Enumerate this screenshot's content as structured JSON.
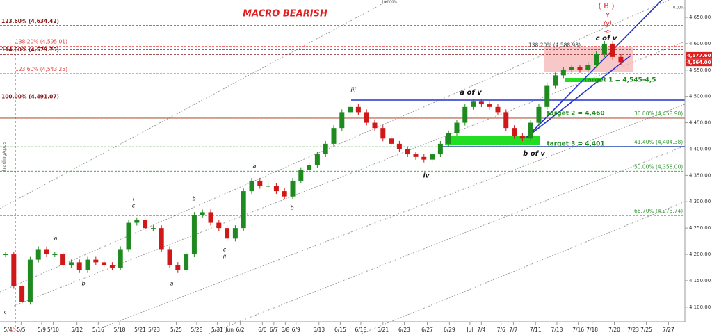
{
  "chart_data": {
    "type": "candlestick",
    "title": "MACRO BEARISH",
    "series": [
      {
        "name": "tradingApps",
        "up_color": "#1f8a1f",
        "down_color": "#d01818",
        "values": [
          4200,
          4140,
          4110,
          4190,
          4210,
          4200,
          4200,
          4180,
          4185,
          4170,
          4190,
          4185,
          4180,
          4175,
          4210,
          4260,
          4265,
          4250,
          4250,
          4210,
          4180,
          4170,
          4200,
          4275,
          4280,
          4260,
          4250,
          4230,
          4250,
          4320,
          4340,
          4330,
          4330,
          4320,
          4310,
          4340,
          4360,
          4370,
          4390,
          4410,
          4440,
          4470,
          4480,
          4470,
          4450,
          4440,
          4420,
          4410,
          4400,
          4390,
          4385,
          4380,
          4390,
          4410,
          4430,
          4450,
          4480,
          4490,
          4485,
          4480,
          4470,
          4440,
          4425,
          4420,
          4450,
          4480,
          4520,
          4540,
          4550,
          4555,
          4550,
          4560,
          4580,
          4600,
          4575,
          4565
        ]
      }
    ],
    "xlim": [
      -0.68,
      82.8
    ],
    "xticks": [
      {
        "value": 0.3,
        "label": "5/4"
      },
      {
        "value": 1.9,
        "label": "5/5"
      },
      {
        "value": 4.4,
        "label": "5/9"
      },
      {
        "value": 5.8,
        "label": "5/10"
      },
      {
        "value": 8.7,
        "label": "5/12"
      },
      {
        "value": 11.3,
        "label": "5/16"
      },
      {
        "value": 13.9,
        "label": "5/18"
      },
      {
        "value": 16.4,
        "label": "5/21"
      },
      {
        "value": 18.1,
        "label": "5/23"
      },
      {
        "value": 20.8,
        "label": "5/25"
      },
      {
        "value": 23.3,
        "label": "5/28"
      },
      {
        "value": 25.8,
        "label": "5/31"
      },
      {
        "value": 27.3,
        "label": "Jun"
      },
      {
        "value": 28.6,
        "label": "6/2"
      },
      {
        "value": 31.3,
        "label": "6/6"
      },
      {
        "value": 32.7,
        "label": "6/7"
      },
      {
        "value": 34.1,
        "label": "6/8"
      },
      {
        "value": 35.4,
        "label": "6/9"
      },
      {
        "value": 38.2,
        "label": "6/13"
      },
      {
        "value": 40.8,
        "label": "6/15"
      },
      {
        "value": 43.3,
        "label": "6/18"
      },
      {
        "value": 46,
        "label": "6/21"
      },
      {
        "value": 48.6,
        "label": "6/23"
      },
      {
        "value": 51.4,
        "label": "6/27"
      },
      {
        "value": 54.1,
        "label": "6/29"
      },
      {
        "value": 56.6,
        "label": "Jul"
      },
      {
        "value": 58,
        "label": "7/4"
      },
      {
        "value": 60.4,
        "label": "7/6"
      },
      {
        "value": 61.9,
        "label": "7/7"
      },
      {
        "value": 64.6,
        "label": "7/11"
      },
      {
        "value": 67.2,
        "label": "7/13"
      },
      {
        "value": 69.8,
        "label": "7/16"
      },
      {
        "value": 71.5,
        "label": "7/18"
      },
      {
        "value": 74.2,
        "label": "7/20"
      },
      {
        "value": 76.5,
        "label": "7/23"
      },
      {
        "value": 78.1,
        "label": "7/25"
      },
      {
        "value": 80.8,
        "label": "7/27"
      }
    ],
    "ylim": [
      4076,
      4683
    ],
    "yticks": [
      {
        "value": 4100,
        "label": "4,100.00"
      },
      {
        "value": 4150,
        "label": "4,150.00"
      },
      {
        "value": 4200,
        "label": "4,200.00"
      },
      {
        "value": 4250,
        "label": "4,250.00"
      },
      {
        "value": 4300,
        "label": "4,300.00"
      },
      {
        "value": 4350,
        "label": "4,350.00"
      },
      {
        "value": 4400,
        "label": "4,400.00"
      },
      {
        "value": 4450,
        "label": "4,450.00"
      },
      {
        "value": 4500,
        "label": "4,500.00"
      },
      {
        "value": 4550,
        "label": "4,550.00"
      },
      {
        "value": 4600,
        "label": "4,600.00"
      },
      {
        "value": 4650,
        "label": "4,650.00"
      }
    ],
    "levels": [
      {
        "label": "123.60% (4,634.42)",
        "value": 4634.42,
        "color": "#8b1a1a"
      },
      {
        "label": "138.20% (4,595.01)",
        "value": 4595.01,
        "color": "#e04040"
      },
      {
        "label": "114.60% (4,579.75)",
        "value": 4579.75,
        "color": "#8b1a1a"
      },
      {
        "label": "123.60% (4,543.25)",
        "value": 4543.25,
        "color": "#e04040"
      },
      {
        "label": "100.00% (4,491.07)",
        "value": 4491.07,
        "color": "#8b1a1a"
      },
      {
        "label": "138.20% (4,588.98)",
        "value": 4588.98,
        "color": "#444444"
      },
      {
        "label": "30.00% (4,458.90)",
        "value": 4458.9,
        "color": "#3a9a3a"
      },
      {
        "label": "41.40% (4,404.38)",
        "value": 4404.38,
        "color": "#3a9a3a"
      },
      {
        "label": "50.00% (4,358.00)",
        "value": 4358,
        "color": "#3a9a3a"
      },
      {
        "label": "66.70% (4,273.74)",
        "value": 4273.74,
        "color": "#3a9a3a"
      }
    ],
    "price_tags": [
      {
        "label": "4,577.60",
        "value": 4577.6
      },
      {
        "label": "4,564.00",
        "value": 4564
      }
    ],
    "annotations": [
      "( B )",
      "Y",
      "(y)",
      "-c-",
      "c of v",
      "a of v",
      "b of v",
      "iii",
      "iv",
      "target 1 = 4,545-4,5",
      "target 2 = 4,460",
      "target 3 = 4,401",
      "-b-",
      "c",
      "a",
      "b",
      "i",
      "c",
      "b",
      "a",
      "c",
      "ii",
      "a",
      "b",
      "0.00%",
      "100.00%"
    ]
  }
}
